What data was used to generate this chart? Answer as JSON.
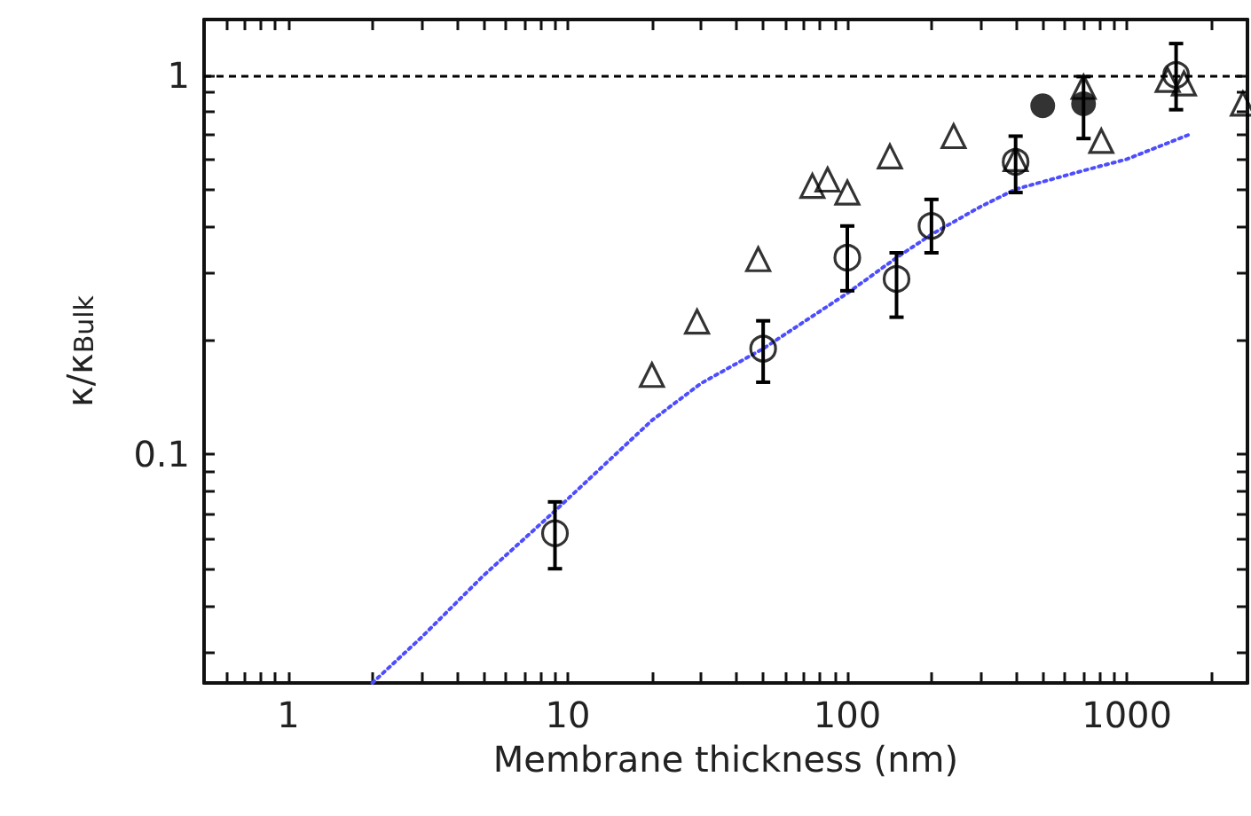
{
  "chart_data": {
    "type": "scatter",
    "xlabel": "Membrane thickness (nm)",
    "ylabel": "κ/κ$_{Bulk}$",
    "log": "xy",
    "grid": false,
    "xlim": [
      0.5,
      2700
    ],
    "ylim": [
      0.025,
      1.4
    ],
    "xticks": [
      {
        "value": 0.6,
        "label": null
      },
      {
        "value": 0.7,
        "label": null
      },
      {
        "value": 0.8,
        "label": null
      },
      {
        "value": 0.9,
        "label": null
      },
      1,
      {
        "value": 2,
        "label": null
      },
      {
        "value": 3,
        "label": null
      },
      {
        "value": 4,
        "label": null
      },
      {
        "value": 5,
        "label": null
      },
      {
        "value": 6,
        "label": null
      },
      {
        "value": 7,
        "label": null
      },
      {
        "value": 8,
        "label": null
      },
      {
        "value": 9,
        "label": null
      },
      10,
      {
        "value": 20,
        "label": null
      },
      {
        "value": 30,
        "label": null
      },
      {
        "value": 40,
        "label": null
      },
      {
        "value": 50,
        "label": null
      },
      {
        "value": 60,
        "label": null
      },
      {
        "value": 70,
        "label": null
      },
      {
        "value": 80,
        "label": null
      },
      {
        "value": 90,
        "label": null
      },
      100,
      {
        "value": 200,
        "label": null
      },
      {
        "value": 300,
        "label": null
      },
      {
        "value": 400,
        "label": null
      },
      {
        "value": 500,
        "label": null
      },
      {
        "value": 600,
        "label": null
      },
      {
        "value": 700,
        "label": null
      },
      {
        "value": 800,
        "label": null
      },
      {
        "value": 900,
        "label": null
      },
      1000,
      {
        "value": 2000,
        "label": null
      }
    ],
    "yticks": [
      {
        "value": 0.03,
        "label": null
      },
      {
        "value": 0.04,
        "label": null
      },
      {
        "value": 0.05,
        "label": null
      },
      {
        "value": 0.06,
        "label": null
      },
      {
        "value": 0.07,
        "label": null
      },
      {
        "value": 0.08,
        "label": null
      },
      {
        "value": 0.09,
        "label": null
      },
      0.1,
      {
        "value": 0.2,
        "label": null
      },
      {
        "value": 0.3,
        "label": null
      },
      {
        "value": 0.4,
        "label": null
      },
      {
        "value": 0.5,
        "label": null
      },
      {
        "value": 0.6,
        "label": null
      },
      {
        "value": 0.7,
        "label": null
      },
      {
        "value": 0.8,
        "label": null
      },
      {
        "value": 0.9,
        "label": null
      },
      1
    ],
    "ref_lines": [
      {
        "axis": "y",
        "value": 1,
        "color": "#000000",
        "line_style": "dashed"
      }
    ],
    "series": [
      {
        "type": "line",
        "color": "#4d4dff",
        "marker": "none",
        "line_style": "dotted",
        "x": [
          2,
          3,
          5,
          9,
          20,
          30,
          50,
          100,
          150,
          200,
          300,
          400,
          700,
          1000,
          1700
        ],
        "values": [
          0.025,
          0.033,
          0.048,
          0.071,
          0.123,
          0.154,
          0.19,
          0.266,
          0.33,
          0.38,
          0.45,
          0.5,
          0.56,
          0.6,
          0.7
        ]
      },
      {
        "color": "#000000",
        "marker": "triangle-open",
        "x": [
          20,
          29,
          48,
          75,
          85,
          100,
          142,
          240,
          400,
          700,
          810,
          1400,
          1600,
          2600
        ],
        "values": [
          0.162,
          0.224,
          0.327,
          0.51,
          0.53,
          0.49,
          0.61,
          0.69,
          0.6,
          0.93,
          0.67,
          0.97,
          0.95,
          0.84
        ]
      },
      {
        "color": "#000000",
        "marker": "circle-open",
        "x": [
          9,
          50,
          100,
          150,
          200,
          400,
          1500
        ],
        "values": [
          0.062,
          0.19,
          0.33,
          0.29,
          0.4,
          0.59,
          1.0
        ],
        "errors": [
          [
            0.05,
            0.075
          ],
          [
            0.155,
            0.225
          ],
          [
            0.27,
            0.4
          ],
          [
            0.23,
            0.34
          ],
          [
            0.34,
            0.47
          ],
          [
            0.49,
            0.69
          ],
          [
            0.81,
            1.21
          ]
        ]
      },
      {
        "color": "#000000",
        "marker": "circle",
        "x": [
          500,
          700
        ],
        "values": [
          0.83,
          0.84
        ],
        "errors": [
          null,
          [
            0.68,
            0.99
          ]
        ]
      }
    ]
  }
}
